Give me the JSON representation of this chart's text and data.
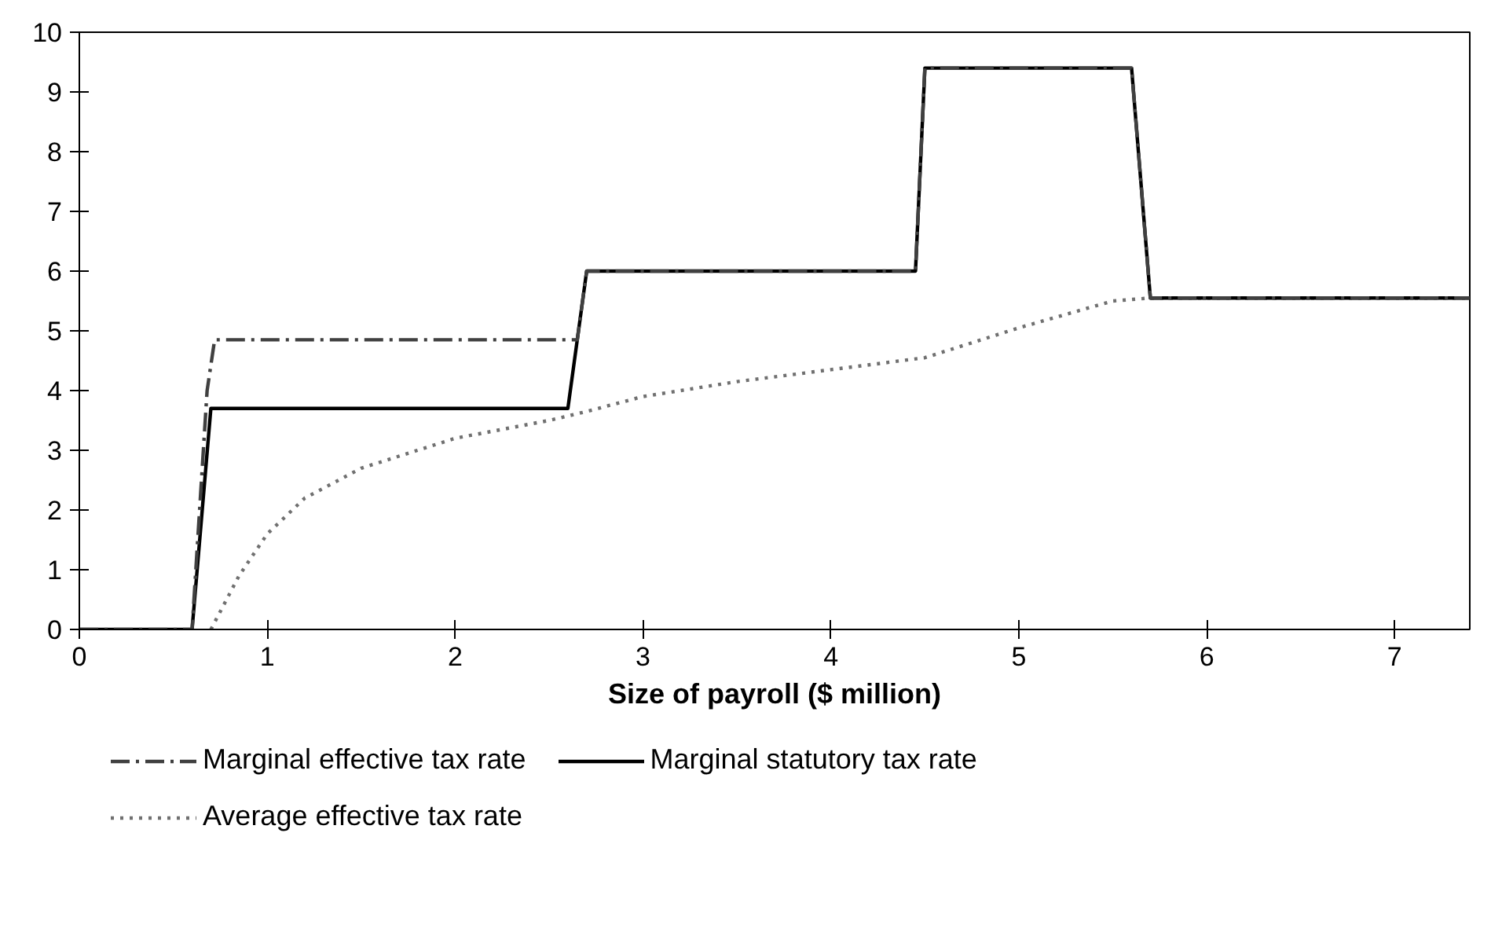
{
  "chart_data": {
    "type": "line",
    "xlabel": "Size of payroll ($ million)",
    "xlim": [
      0,
      7.4
    ],
    "xticks": [
      0,
      1,
      2,
      3,
      4,
      5,
      6,
      7
    ],
    "ylim": [
      0,
      10
    ],
    "yticks": [
      0,
      1,
      2,
      3,
      4,
      5,
      6,
      7,
      8,
      9,
      10
    ],
    "grid": false,
    "legend": "bottom",
    "marker": "none",
    "series": [
      {
        "name": "Marginal effective tax rate",
        "color": "#404040",
        "line_style": "dashdot",
        "x": [
          0,
          0.6,
          0.68,
          0.72,
          2.65,
          2.7,
          4.45,
          4.5,
          5.6,
          5.7,
          7.4
        ],
        "values": [
          0,
          0,
          4.0,
          4.85,
          4.85,
          6,
          6,
          9.4,
          9.4,
          5.55,
          5.55
        ]
      },
      {
        "name": "Marginal statutory tax rate",
        "color": "#000000",
        "line_style": "solid",
        "x": [
          0,
          0.6,
          0.7,
          2.6,
          2.7,
          4.45,
          4.5,
          5.6,
          5.7,
          7.4
        ],
        "values": [
          0,
          0,
          3.7,
          3.7,
          6,
          6,
          9.4,
          9.4,
          5.55,
          5.55
        ]
      },
      {
        "name": "Average effective tax rate",
        "color": "#707070",
        "line_style": "dotted",
        "x": [
          0.7,
          0.75,
          0.85,
          1,
          1.2,
          1.5,
          2,
          2.5,
          2.7,
          3,
          3.5,
          4,
          4.5,
          5,
          5.5,
          5.7,
          7.4
        ],
        "values": [
          0,
          0.3,
          0.9,
          1.6,
          2.2,
          2.7,
          3.2,
          3.5,
          3.65,
          3.9,
          4.15,
          4.35,
          4.55,
          5.05,
          5.5,
          5.55,
          5.55
        ]
      }
    ]
  }
}
